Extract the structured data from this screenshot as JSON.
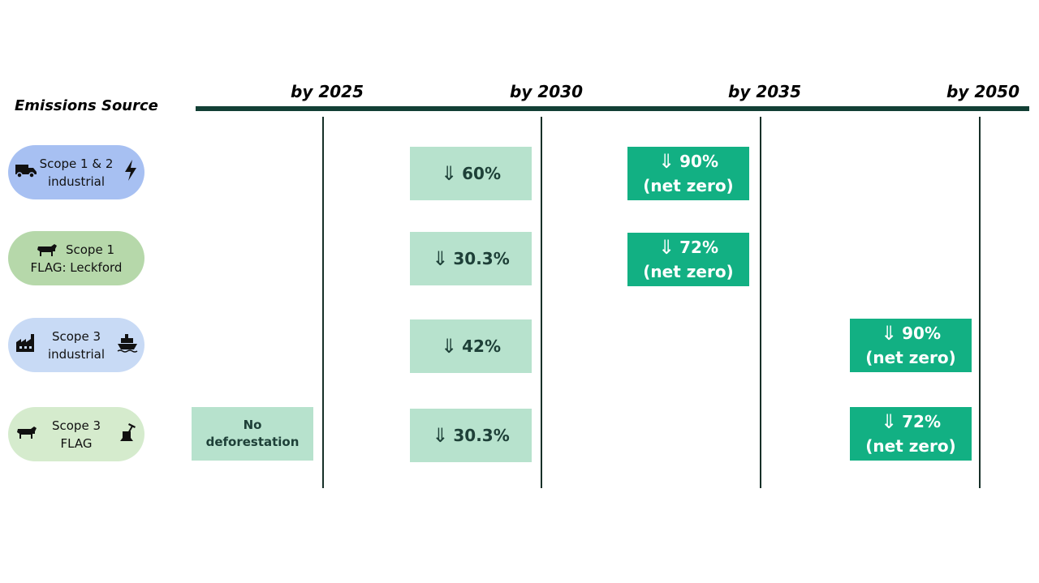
{
  "header": {
    "emissions_source": "Emissions Source",
    "years": [
      "by 2025",
      "by 2030",
      "by 2035",
      "by 2050"
    ]
  },
  "rows": [
    {
      "line1": "Scope 1 & 2",
      "line2": "industrial",
      "icon_left": "truck-icon",
      "icon_right": "lightning-icon",
      "color": "#a7c0f2"
    },
    {
      "line1": "Scope 1",
      "line2": "FLAG: Leckford",
      "icon_left": "cow-icon",
      "icon_right": "",
      "color": "#b6d8aa"
    },
    {
      "line1": "Scope 3",
      "line2": "industrial",
      "icon_left": "factory-icon",
      "icon_right": "ship-icon",
      "color": "#c8daf5"
    },
    {
      "line1": "Scope 3",
      "line2": "FLAG",
      "icon_left": "cow-icon",
      "icon_right": "tree-stump-icon",
      "color": "#d5ebcd"
    }
  ],
  "targets": {
    "r1_2030": "60%",
    "r1_2035": "90%",
    "r1_2035_sub": "(net zero)",
    "r2_2030": "30.3%",
    "r2_2035": "72%",
    "r2_2035_sub": "(net zero)",
    "r3_2030": "42%",
    "r3_2050": "90%",
    "r3_2050_sub": "(net zero)",
    "r4_2025_l1": "No",
    "r4_2025_l2": "deforestation",
    "r4_2030": "30.3%",
    "r4_2050": "72%",
    "r4_2050_sub": "(net zero)"
  },
  "colors": {
    "timeline": "#123f35",
    "light_box": "#b7e2cd",
    "dark_box": "#12b083"
  }
}
